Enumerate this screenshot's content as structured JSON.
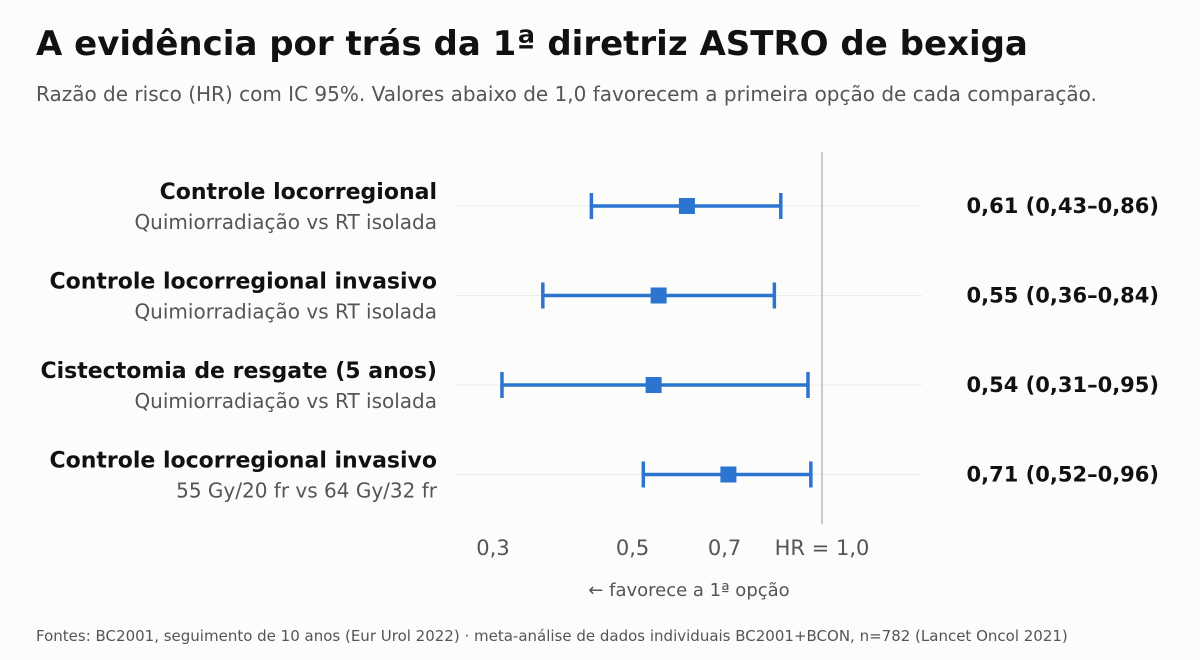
{
  "title": "A evidência por trás da 1ª diretriz ASTRO de bexiga",
  "subtitle": "Razão de risco (HR) com IC 95%. Valores abaixo de 1,0 favorecem a primeira opção de cada comparação.",
  "footer": "Fontes: BC2001, seguimento de 10 anos (Eur Urol 2022) · meta-análise de dados individuais BC2001+BCON, n=782 (Lancet Oncol 2021)",
  "colors": {
    "accent": "#2b74cf",
    "reference_line": "#c8c8c8",
    "grid": "#ececec"
  },
  "chart_data": {
    "type": "forest",
    "scale": "log",
    "xlim": [
      0.25,
      1.25
    ],
    "reference_value": 1.0,
    "xticks": [
      {
        "value": 0.3,
        "label": "0,3"
      },
      {
        "value": 0.5,
        "label": "0,5"
      },
      {
        "value": 0.7,
        "label": "0,7"
      },
      {
        "value": 1.0,
        "label": "HR = 1,0"
      }
    ],
    "xlabel": "←  favorece a 1ª opção",
    "rows": [
      {
        "label": "Controle locorregional",
        "comparison": "Quimiorradiação vs RT isolada",
        "hr": 0.61,
        "ci_low": 0.43,
        "ci_high": 0.86,
        "display": "0,61  (0,43–0,86)"
      },
      {
        "label": "Controle locorregional invasivo",
        "comparison": "Quimiorradiação vs RT isolada",
        "hr": 0.55,
        "ci_low": 0.36,
        "ci_high": 0.84,
        "display": "0,55  (0,36–0,84)"
      },
      {
        "label": "Cistectomia de resgate (5 anos)",
        "comparison": "Quimiorradiação vs RT isolada",
        "hr": 0.54,
        "ci_low": 0.31,
        "ci_high": 0.95,
        "display": "0,54  (0,31–0,95)"
      },
      {
        "label": "Controle locorregional invasivo",
        "comparison": "55 Gy/20 fr vs 64 Gy/32 fr",
        "hr": 0.71,
        "ci_low": 0.52,
        "ci_high": 0.96,
        "display": "0,71  (0,52–0,96)"
      }
    ]
  }
}
